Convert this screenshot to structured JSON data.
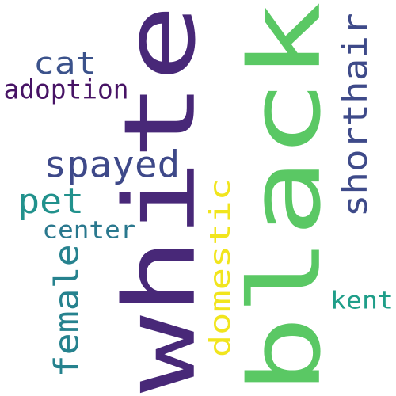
{
  "words": [
    {
      "key": "black",
      "text": "black",
      "color": "#5ac864",
      "vertical": true
    },
    {
      "key": "white",
      "text": "white",
      "color": "#482878",
      "vertical": true
    },
    {
      "key": "shorthair",
      "text": "shorthair",
      "color": "#3e4a89",
      "vertical": true
    },
    {
      "key": "cat",
      "text": "cat",
      "color": "#3b528b",
      "vertical": false
    },
    {
      "key": "adoption",
      "text": "adoption",
      "color": "#471365",
      "vertical": false
    },
    {
      "key": "spayed",
      "text": "spayed",
      "color": "#3e4989",
      "vertical": false
    },
    {
      "key": "pet",
      "text": "pet",
      "color": "#21918c",
      "vertical": false
    },
    {
      "key": "center",
      "text": "center",
      "color": "#2a788e",
      "vertical": false
    },
    {
      "key": "domestic",
      "text": "domestic",
      "color": "#f1e51d",
      "vertical": true
    },
    {
      "key": "female",
      "text": "female",
      "color": "#26828e",
      "vertical": true
    },
    {
      "key": "kent",
      "text": "kent",
      "color": "#1f9e89",
      "vertical": false
    }
  ]
}
